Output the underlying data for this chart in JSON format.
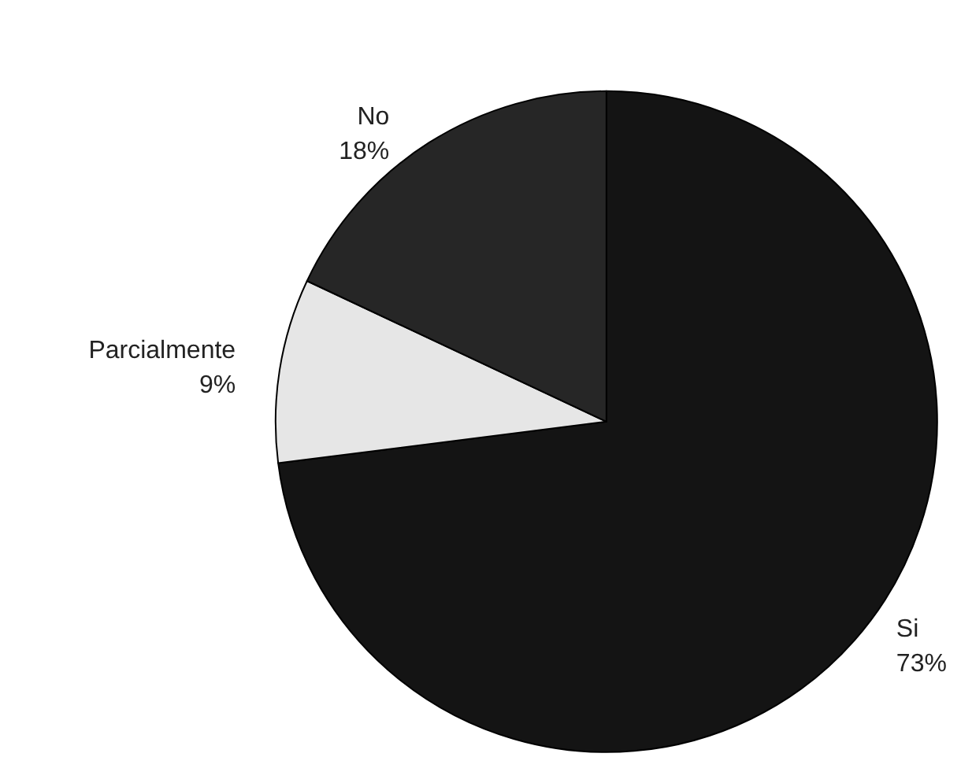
{
  "chart_data": {
    "type": "pie",
    "categories": [
      "Si",
      "Parcialmente",
      "No"
    ],
    "values": [
      73,
      9,
      18
    ],
    "value_labels": [
      "73%",
      "9%",
      "18%"
    ],
    "colors": [
      "#141414",
      "#e6e6e6",
      "#262626"
    ],
    "legend": false
  }
}
